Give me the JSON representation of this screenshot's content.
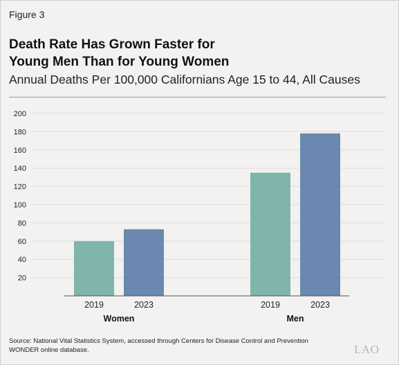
{
  "figure_label": "Figure 3",
  "title_line1": "Death Rate Has Grown Faster for",
  "title_line2": "Young Men Than for Young Women",
  "subtitle": "Annual Deaths Per 100,000 Californians Age 15 to 44, All Causes",
  "source_line1": "Source: National Vital Statistics System, accessed through Centers for Disease Control and Prevention",
  "source_line2": "WONDER online database.",
  "logo": "LAO",
  "chart_data": {
    "type": "bar",
    "groups": [
      "Women",
      "Men"
    ],
    "categories": [
      "2019",
      "2023"
    ],
    "series": [
      {
        "values": [
          60,
          135
        ],
        "color": "#7fb5aa"
      },
      {
        "values": [
          73,
          178
        ],
        "color": "#6a88b0"
      }
    ],
    "yticks": [
      20,
      40,
      60,
      80,
      100,
      120,
      140,
      160,
      180,
      200
    ],
    "ylim": [
      0,
      200
    ],
    "grid": true
  }
}
